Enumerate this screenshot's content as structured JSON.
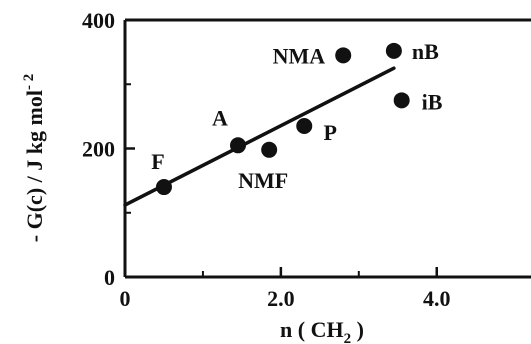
{
  "chart_data": {
    "type": "scatter",
    "title": "",
    "xlabel": "n ( CH",
    "xlabel_sub": "2",
    "xlabel_close": " )",
    "ylabel": "- G(c)  / J kg mol",
    "ylabel_sup": "- 2",
    "xlim": [
      0,
      4.6
    ],
    "ylim": [
      0,
      400
    ],
    "xticks": [
      {
        "value": 0,
        "label": "0"
      },
      {
        "value": 2.0,
        "label": "2.0"
      },
      {
        "value": 4.0,
        "label": "4.0"
      }
    ],
    "yticks": [
      {
        "value": 0,
        "label": "0"
      },
      {
        "value": 200,
        "label": "200"
      },
      {
        "value": 400,
        "label": "400"
      }
    ],
    "points": [
      {
        "label": "F",
        "x": 0.5,
        "y": 140
      },
      {
        "label": "A",
        "x": 1.45,
        "y": 205
      },
      {
        "label": "NMF",
        "x": 1.85,
        "y": 198
      },
      {
        "label": "P",
        "x": 2.3,
        "y": 235
      },
      {
        "label": "NMA",
        "x": 2.8,
        "y": 345
      },
      {
        "label": "nB",
        "x": 3.45,
        "y": 352
      },
      {
        "label": "iB",
        "x": 3.55,
        "y": 275
      }
    ],
    "fit_line": {
      "x0": 0,
      "y0": 112,
      "x1": 3.45,
      "y1": 325
    },
    "grid": false,
    "colors": {
      "ink": "#111111",
      "background": "#ffffff"
    }
  }
}
